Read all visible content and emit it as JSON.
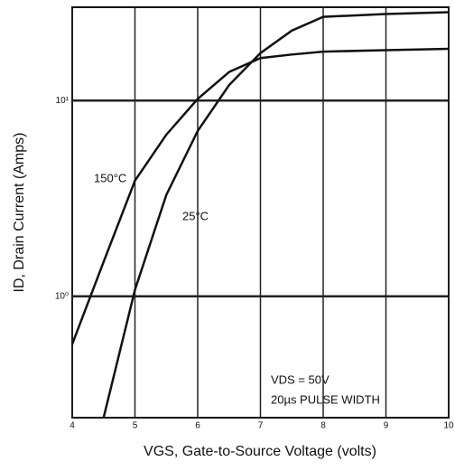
{
  "chart_data": {
    "type": "line",
    "xlabel": "VGS, Gate-to-Source Voltage (volts)",
    "ylabel": "ID, Drain Current (Amps)",
    "x": [
      4,
      4.5,
      5,
      5.5,
      6,
      6.5,
      7,
      7.5,
      8,
      9,
      10
    ],
    "series": [
      {
        "name": "150°C",
        "color": "#111111",
        "values": [
          0.57,
          1.5,
          3.9,
          6.7,
          10.2,
          14,
          16.5,
          17.2,
          17.8,
          18.1,
          18.4
        ]
      },
      {
        "name": "25°C",
        "color": "#111111",
        "values": [
          null,
          0.24,
          1.08,
          3.3,
          7.0,
          12,
          17.5,
          22.8,
          26.8,
          27.7,
          28.3
        ]
      }
    ],
    "annotations": [
      "VDS = 50V",
      "20µs PULSE WIDTH"
    ],
    "xlim": [
      4,
      10
    ],
    "xticks": [
      4,
      5,
      6,
      7,
      8,
      9,
      10
    ],
    "ylim": [
      0.24,
      30
    ],
    "yticks": [
      {
        "value": 1,
        "label": "10⁰"
      },
      {
        "value": 10,
        "label": "10¹"
      }
    ],
    "ylog": true,
    "grid": true
  }
}
